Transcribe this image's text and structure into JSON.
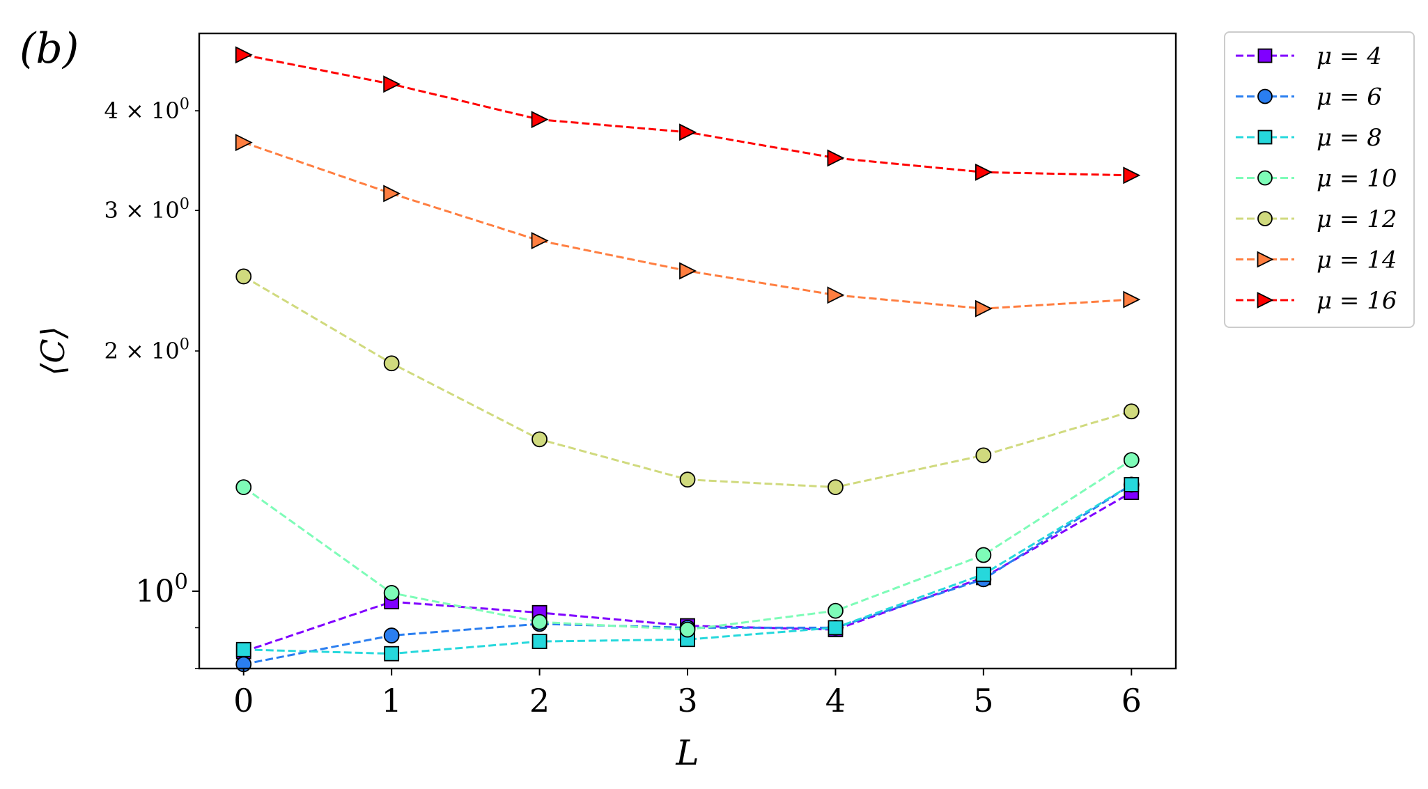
{
  "panel_label": "(b)",
  "chart_data": {
    "type": "line",
    "xlabel": "L",
    "ylabel": "⟨C⟩",
    "x": [
      0,
      1,
      2,
      3,
      4,
      5,
      6
    ],
    "xlim": [
      -0.3,
      6.3
    ],
    "ylim": [
      0.8,
      5.0
    ],
    "y_scale": "log",
    "x_ticks": [
      "0",
      "1",
      "2",
      "3",
      "4",
      "5",
      "6"
    ],
    "y_major_ticks": [
      {
        "value": 1.0,
        "label": "10^0"
      }
    ],
    "y_minor_ticks": [
      {
        "value": 2,
        "label": "2 × 10^0"
      },
      {
        "value": 3,
        "label": "3 × 10^0"
      },
      {
        "value": 4,
        "label": "4 × 10^0"
      }
    ],
    "y_unlabeled_minor_ticks": [
      0.8,
      0.9
    ],
    "grid": false,
    "legend_position": "outside right, top",
    "line_style": "dashed",
    "series": [
      {
        "name": "μ = 4",
        "color": "#8000ff",
        "marker": "square",
        "values": [
          0.84,
          0.97,
          0.94,
          0.905,
          0.895,
          1.04,
          1.33
        ]
      },
      {
        "name": "μ = 6",
        "color": "#2a7ef0",
        "marker": "circle",
        "values": [
          0.81,
          0.88,
          0.91,
          0.9,
          0.9,
          1.035,
          1.36
        ]
      },
      {
        "name": "μ = 8",
        "color": "#26d8dc",
        "marker": "square",
        "values": [
          0.845,
          0.835,
          0.865,
          0.87,
          0.9,
          1.05,
          1.36
        ]
      },
      {
        "name": "μ = 10",
        "color": "#7efcb8",
        "marker": "circle",
        "values": [
          1.35,
          0.995,
          0.915,
          0.895,
          0.945,
          1.11,
          1.46
        ]
      },
      {
        "name": "μ = 12",
        "color": "#d0da7e",
        "marker": "circle",
        "values": [
          2.48,
          1.93,
          1.55,
          1.38,
          1.35,
          1.48,
          1.68
        ]
      },
      {
        "name": "μ = 14",
        "color": "#ff7e40",
        "marker": "triangle-right",
        "values": [
          3.65,
          3.15,
          2.75,
          2.52,
          2.35,
          2.26,
          2.32
        ]
      },
      {
        "name": "μ = 16",
        "color": "#ff0000",
        "marker": "triangle-right",
        "values": [
          4.7,
          4.32,
          3.9,
          3.76,
          3.49,
          3.35,
          3.32
        ]
      }
    ]
  }
}
